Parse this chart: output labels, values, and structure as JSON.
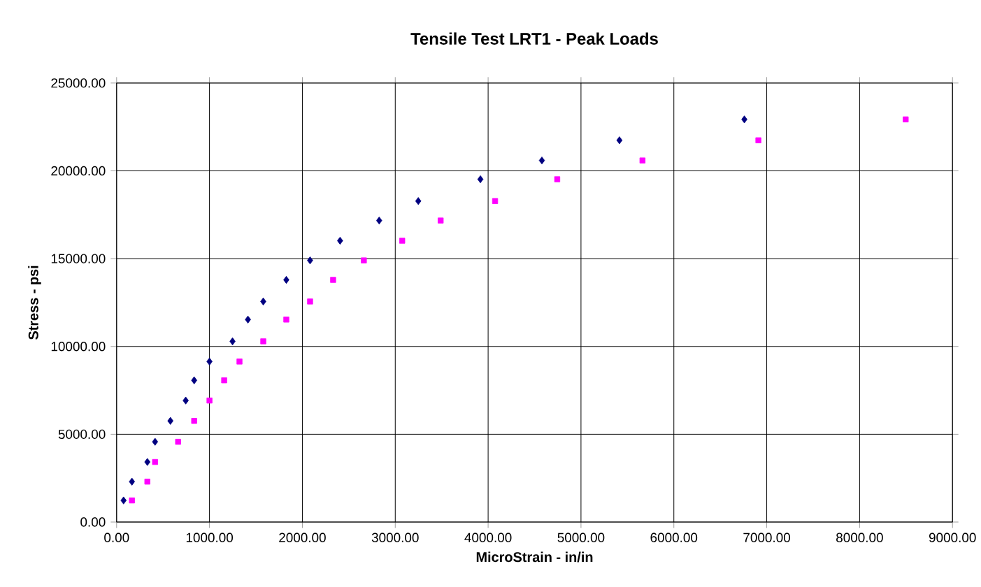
{
  "chart_data": {
    "type": "scatter",
    "title": "Tensile Test LRT1 - Peak Loads",
    "xlabel": "MicroStrain  -  in/in",
    "ylabel": "Stress  -  psi",
    "xlim": [
      0,
      9000
    ],
    "ylim": [
      0,
      25000
    ],
    "grid": true,
    "xticks": [
      {
        "value": 0,
        "label": "0.00"
      },
      {
        "value": 1000,
        "label": "1000.00"
      },
      {
        "value": 2000,
        "label": "2000.00"
      },
      {
        "value": 3000,
        "label": "3000.00"
      },
      {
        "value": 4000,
        "label": "4000.00"
      },
      {
        "value": 5000,
        "label": "5000.00"
      },
      {
        "value": 6000,
        "label": "6000.00"
      },
      {
        "value": 7000,
        "label": "7000.00"
      },
      {
        "value": 8000,
        "label": "8000.00"
      },
      {
        "value": 9000,
        "label": "9000.00"
      }
    ],
    "yticks": [
      {
        "value": 0,
        "label": "0.00"
      },
      {
        "value": 5000,
        "label": "5000.00"
      },
      {
        "value": 10000,
        "label": "10000.00"
      },
      {
        "value": 15000,
        "label": "15000.00"
      },
      {
        "value": 20000,
        "label": "20000.00"
      },
      {
        "value": 25000,
        "label": "25000.00"
      }
    ],
    "series": [
      {
        "color": "#000080",
        "marker": "diamond",
        "x": [
          75,
          165,
          331,
          414,
          579,
          744,
          835,
          1000,
          1248,
          1414,
          1579,
          1827,
          2083,
          2406,
          2827,
          3248,
          3917,
          4579,
          5414,
          6759
        ],
        "values": [
          1230,
          2300,
          3420,
          4570,
          5760,
          6920,
          8070,
          9140,
          10290,
          11530,
          12560,
          13790,
          14900,
          16020,
          17170,
          18280,
          19520,
          20590,
          21740,
          22930
        ]
      },
      {
        "color": "#ff00ff",
        "marker": "square",
        "x": [
          165,
          331,
          414,
          662,
          835,
          1000,
          1158,
          1323,
          1579,
          1827,
          2083,
          2331,
          2662,
          3075,
          3489,
          4075,
          4744,
          5662,
          6910,
          8496
        ],
        "values": [
          1230,
          2300,
          3420,
          4570,
          5760,
          6920,
          8070,
          9140,
          10290,
          11530,
          12560,
          13790,
          14900,
          16020,
          17170,
          18280,
          19520,
          20590,
          21740,
          22930
        ]
      }
    ]
  }
}
